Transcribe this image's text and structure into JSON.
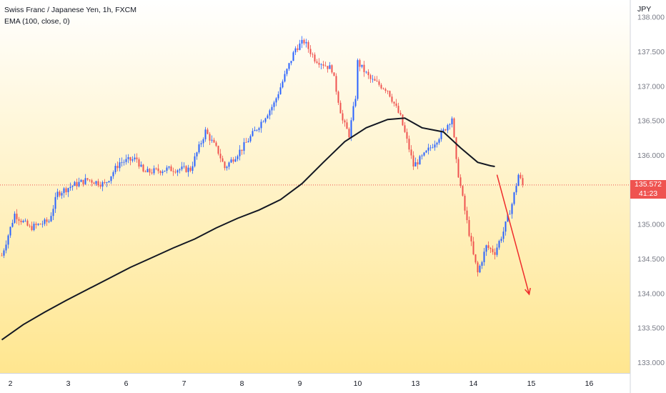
{
  "chart_data": {
    "type": "candlestick",
    "title": "Swiss Franc / Japanese Yen, 1h, FXCM",
    "indicator_label": "EMA (100, close, 0)",
    "currency": "JPY",
    "ylim": [
      132.85,
      138.25
    ],
    "y_ticks": [
      "138.000",
      "137.500",
      "137.000",
      "136.500",
      "136.000",
      "135.500",
      "135.000",
      "134.500",
      "134.000",
      "133.500",
      "133.000"
    ],
    "y_tick_values": [
      138.0,
      137.5,
      137.0,
      136.5,
      136.0,
      135.5,
      135.0,
      134.5,
      134.0,
      133.5,
      133.0
    ],
    "x_ticks": [
      "2",
      "3",
      "6",
      "7",
      "8",
      "9",
      "10",
      "13",
      "14",
      "15",
      "16"
    ],
    "x_tick_index": [
      4,
      31,
      58,
      85,
      112,
      139,
      166,
      193,
      220,
      247,
      274
    ],
    "last_price": "135.572",
    "last_price_value": 135.572,
    "countdown": "41:23",
    "ema_series": [
      [
        0,
        133.33
      ],
      [
        10,
        133.55
      ],
      [
        20,
        133.73
      ],
      [
        30,
        133.9
      ],
      [
        40,
        134.06
      ],
      [
        50,
        134.22
      ],
      [
        60,
        134.38
      ],
      [
        70,
        134.52
      ],
      [
        80,
        134.66
      ],
      [
        90,
        134.79
      ],
      [
        100,
        134.95
      ],
      [
        110,
        135.09
      ],
      [
        120,
        135.21
      ],
      [
        130,
        135.36
      ],
      [
        140,
        135.59
      ],
      [
        150,
        135.9
      ],
      [
        160,
        136.2
      ],
      [
        170,
        136.4
      ],
      [
        180,
        136.52
      ],
      [
        188,
        136.54
      ],
      [
        196,
        136.4
      ],
      [
        206,
        136.34
      ],
      [
        214,
        136.11
      ],
      [
        222,
        135.9
      ],
      [
        228,
        135.85
      ],
      [
        230,
        135.84
      ]
    ],
    "arrow": {
      "from": [
        231,
        135.72
      ],
      "to": [
        246,
        133.99
      ],
      "color": "#ef2b2b"
    },
    "colors": {
      "bull": "#2962ff",
      "bear": "#ef5350",
      "ema": "#131722",
      "bg_top": "#ffffff",
      "bg_bottom": "#ffe68f",
      "price_line": "#ef5350"
    }
  }
}
